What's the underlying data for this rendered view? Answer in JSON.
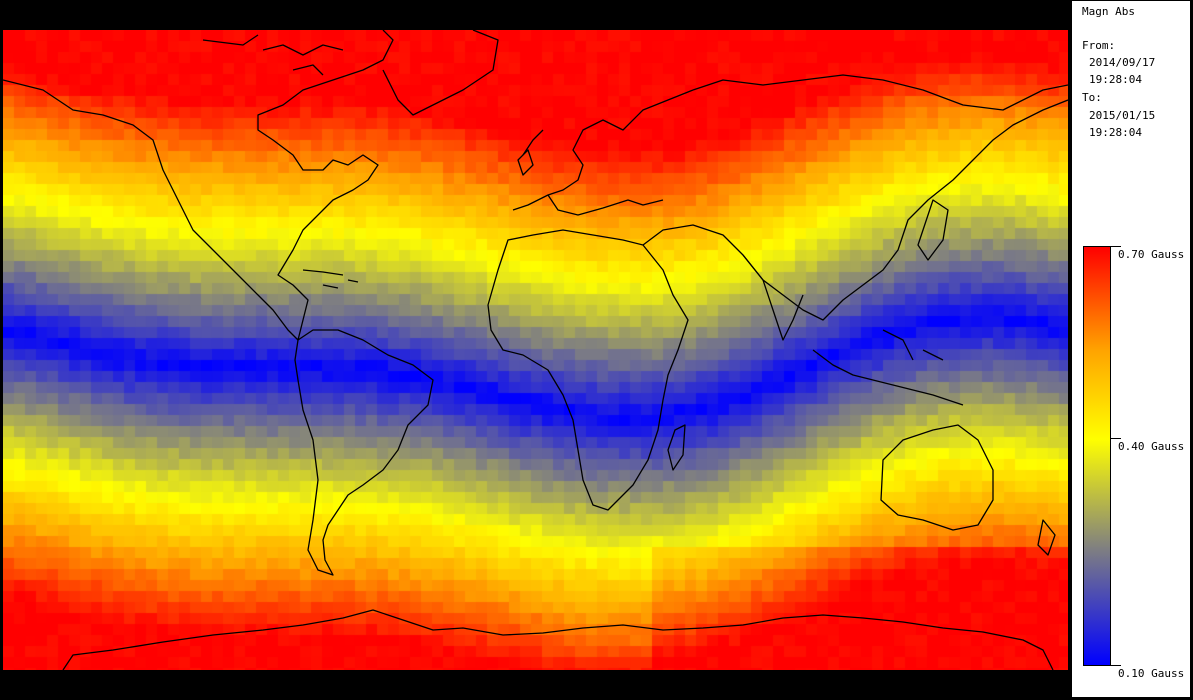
{
  "legend": {
    "title": "Magn Abs",
    "from_label": "From:",
    "from_date": "2014/09/17",
    "from_time": "19:28:04",
    "to_label": "To:",
    "to_date": "2015/01/15",
    "to_time": "19:28:04",
    "scale_max": "0.70 Gauss",
    "scale_mid": "0.40 Gauss",
    "scale_min": "0.10 Gauss"
  },
  "colors": {
    "scale_max": "#ff0000",
    "scale_high": "#ffa500",
    "scale_mid": "#ffff00",
    "scale_low_mid": "#808080",
    "scale_min": "#0000ff",
    "coastline": "#000000",
    "background": "#000000"
  }
}
